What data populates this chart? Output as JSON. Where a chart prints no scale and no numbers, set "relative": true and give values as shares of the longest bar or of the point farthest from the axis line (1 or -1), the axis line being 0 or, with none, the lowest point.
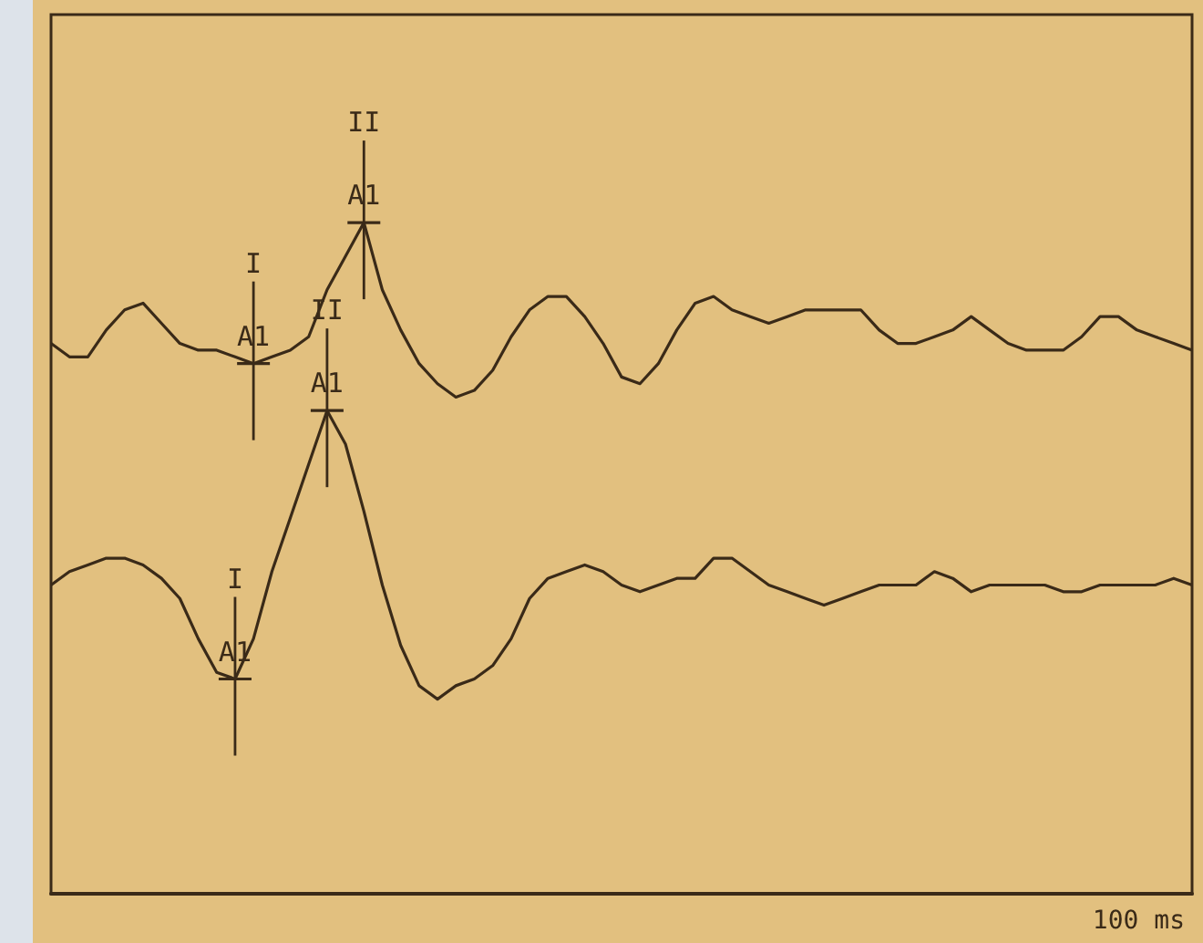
{
  "chart_data": {
    "type": "line",
    "relative": true,
    "marker": "none",
    "xlabel": "100 ms",
    "categories": [
      null,
      null,
      null,
      null,
      null,
      null,
      null,
      null,
      null,
      null,
      null,
      null,
      null,
      null,
      null,
      null,
      null,
      null,
      null,
      null,
      null,
      null,
      null,
      null,
      null,
      null,
      null,
      null,
      null,
      null,
      null,
      null,
      null,
      null,
      null,
      null,
      null,
      null,
      null,
      null,
      null,
      null,
      null,
      null,
      null,
      null,
      null,
      null,
      null,
      null,
      null,
      null,
      null,
      null,
      null,
      null,
      null,
      null,
      null,
      null,
      null,
      null,
      null
    ],
    "series": [
      {
        "color": "#3a2a18",
        "values": [
          0.82,
          0.8,
          0.8,
          0.84,
          0.87,
          0.88,
          0.85,
          0.82,
          0.81,
          0.81,
          0.8,
          0.79,
          0.8,
          0.81,
          0.83,
          0.9,
          0.95,
          1,
          0.9,
          0.84,
          0.79,
          0.76,
          0.74,
          0.75,
          0.78,
          0.83,
          0.87,
          0.89,
          0.89,
          0.86,
          0.82,
          0.77,
          0.76,
          0.79,
          0.84,
          0.88,
          0.89,
          0.87,
          0.86,
          0.85,
          0.86,
          0.87,
          0.87,
          0.87,
          0.87,
          0.84,
          0.82,
          0.82,
          0.83,
          0.84,
          0.86,
          0.84,
          0.82,
          0.81,
          0.81,
          0.81,
          0.83,
          0.86,
          0.86,
          0.84,
          0.83,
          0.82,
          0.81
        ]
      },
      {
        "color": "#3a2a18",
        "values": [
          0.46,
          0.48,
          0.49,
          0.5,
          0.5,
          0.49,
          0.47,
          0.44,
          0.38,
          0.33,
          0.32,
          0.38,
          0.48,
          0.56,
          0.64,
          0.72,
          0.67,
          0.57,
          0.46,
          0.37,
          0.31,
          0.29,
          0.31,
          0.32,
          0.34,
          0.38,
          0.44,
          0.47,
          0.48,
          0.49,
          0.48,
          0.46,
          0.45,
          0.46,
          0.47,
          0.47,
          0.5,
          0.5,
          0.48,
          0.46,
          0.45,
          0.44,
          0.43,
          0.44,
          0.45,
          0.46,
          0.46,
          0.46,
          0.48,
          0.47,
          0.45,
          0.46,
          0.46,
          0.46,
          0.46,
          0.45,
          0.45,
          0.46,
          0.46,
          0.46,
          0.46,
          0.47,
          0.46
        ]
      }
    ],
    "annotations": [
      "II",
      "A1",
      "I",
      "A1",
      "II",
      "A1",
      "I",
      "A1"
    ]
  }
}
